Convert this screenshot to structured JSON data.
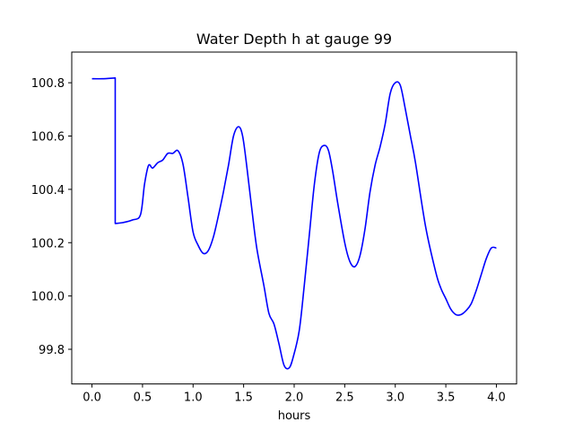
{
  "chart_data": {
    "type": "line",
    "title": "Water Depth h at gauge 99",
    "xlabel": "hours",
    "ylabel": "",
    "xlim": [
      -0.2,
      4.2
    ],
    "ylim": [
      99.67,
      100.915
    ],
    "xticks": [
      0.0,
      0.5,
      1.0,
      1.5,
      2.0,
      2.5,
      3.0,
      3.5,
      4.0
    ],
    "xtick_labels": [
      "0.0",
      "0.5",
      "1.0",
      "1.5",
      "2.0",
      "2.5",
      "3.0",
      "3.5",
      "4.0"
    ],
    "yticks": [
      99.8,
      100.0,
      100.2,
      100.4,
      100.6,
      100.8
    ],
    "ytick_labels": [
      "99.8",
      "100.0",
      "100.2",
      "100.4",
      "100.6",
      "100.8"
    ],
    "grid": false,
    "series": [
      {
        "color": "#0000ff",
        "x": [
          0.0,
          0.1,
          0.23,
          0.23,
          0.3,
          0.4,
          0.48,
          0.52,
          0.56,
          0.6,
          0.65,
          0.7,
          0.75,
          0.8,
          0.85,
          0.9,
          0.95,
          1.0,
          1.05,
          1.1,
          1.15,
          1.2,
          1.25,
          1.3,
          1.35,
          1.4,
          1.45,
          1.49,
          1.53,
          1.58,
          1.63,
          1.7,
          1.75,
          1.8,
          1.85,
          1.9,
          1.95,
          1.99,
          2.05,
          2.1,
          2.15,
          2.2,
          2.25,
          2.3,
          2.34,
          2.38,
          2.43,
          2.5,
          2.55,
          2.6,
          2.65,
          2.7,
          2.75,
          2.8,
          2.85,
          2.9,
          2.95,
          3.0,
          3.05,
          3.1,
          3.15,
          3.2,
          3.3,
          3.4,
          3.45,
          3.5,
          3.55,
          3.6,
          3.65,
          3.7,
          3.75,
          3.8,
          3.85,
          3.9,
          3.95,
          4.0
        ],
        "y": [
          100.815,
          100.815,
          100.818,
          100.272,
          100.275,
          100.285,
          100.305,
          100.42,
          100.49,
          100.48,
          100.5,
          100.51,
          100.535,
          100.535,
          100.545,
          100.495,
          100.37,
          100.24,
          100.19,
          100.16,
          100.17,
          100.22,
          100.3,
          100.39,
          100.49,
          100.6,
          100.635,
          100.6,
          100.49,
          100.33,
          100.18,
          100.04,
          99.935,
          99.895,
          99.82,
          99.74,
          99.73,
          99.77,
          99.87,
          100.04,
          100.23,
          100.42,
          100.54,
          100.565,
          100.545,
          100.47,
          100.35,
          100.2,
          100.13,
          100.11,
          100.15,
          100.25,
          100.39,
          100.49,
          100.56,
          100.645,
          100.76,
          100.8,
          100.79,
          100.7,
          100.6,
          100.5,
          100.26,
          100.09,
          100.03,
          99.99,
          99.95,
          99.93,
          99.93,
          99.945,
          99.97,
          100.02,
          100.08,
          100.14,
          100.18,
          100.18
        ]
      }
    ]
  }
}
